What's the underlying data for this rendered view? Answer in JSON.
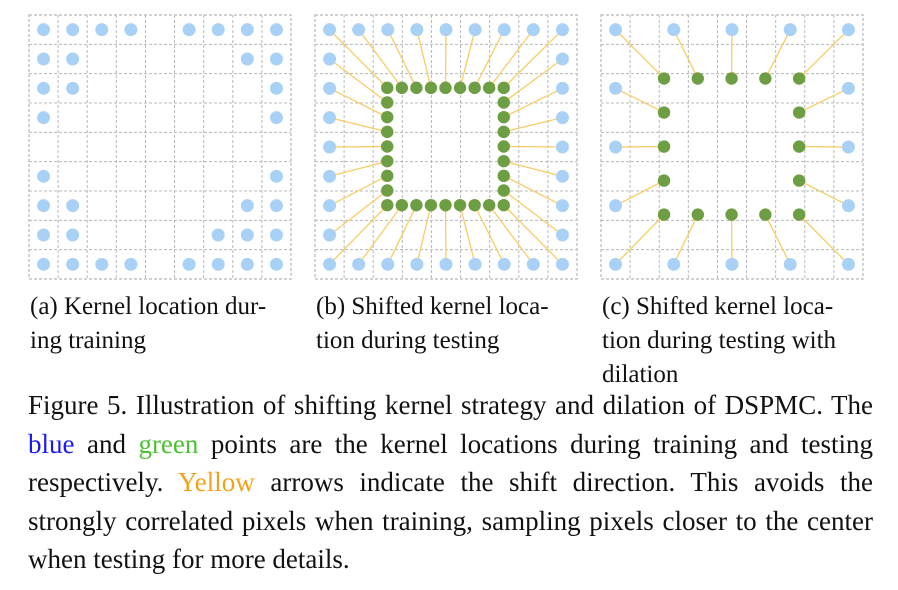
{
  "colors": {
    "blue_point": "#a9d1f5",
    "green_point": "#6e9e44",
    "yellow_arrow": "#f7cd66",
    "grid": "#b8b8b8",
    "caption_blue": "#1a1af0",
    "caption_green": "#4cc030",
    "caption_yellow": "#f2a31b"
  },
  "subcaptions": {
    "a": {
      "line1": "(a) Kernel location dur-",
      "line2": "ing training"
    },
    "b": {
      "line1": "(b) Shifted kernel loca-",
      "line2": "tion during testing"
    },
    "c": {
      "line1": "(c) Shifted kernel loca-",
      "line2": "tion during testing with",
      "line3": "dilation"
    }
  },
  "caption": {
    "text1": "Figure 5.  Illustration of shifting kernel strategy and dilation of DSPMC. The ",
    "blue_word": "blue",
    "text2": " and ",
    "green_word": "green",
    "text3": " points are the kernel locations during training and testing respectively. ",
    "yellow_word": "Yellow",
    "text4": " arrows indicate the shift direction. This avoids the strongly correlated pixels when training, sampling pixels closer to the center when testing for more details."
  }
}
